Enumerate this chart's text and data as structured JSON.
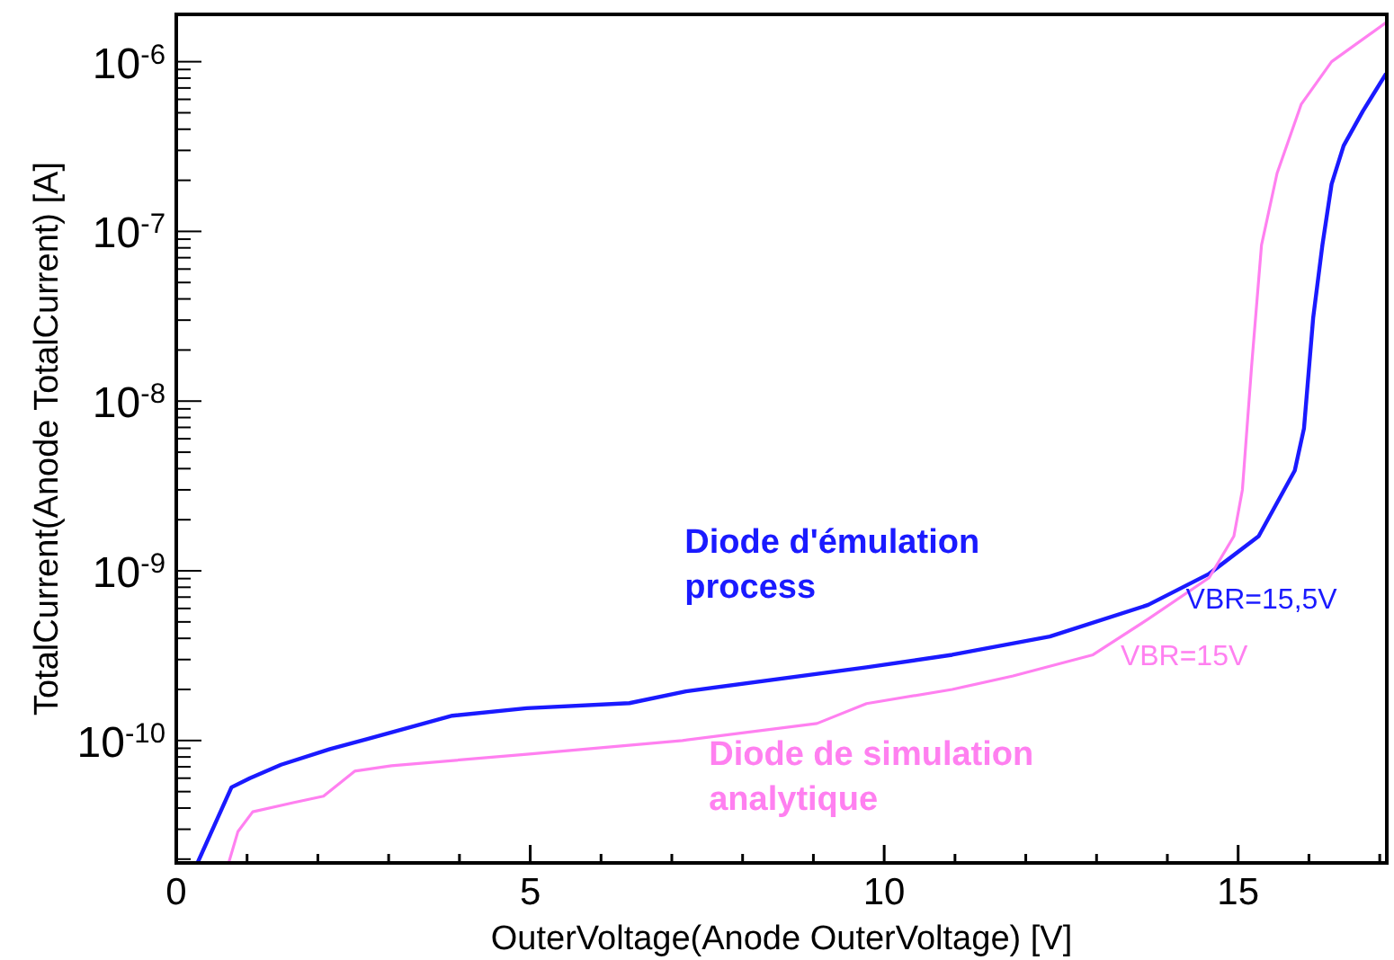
{
  "chart_data": {
    "type": "line",
    "xlabel": "OuterVoltage(Anode OuterVoltage) [V]",
    "ylabel": "TotalCurrent(Anode TotalCurrent) [A]",
    "log": "y",
    "xlim": [
      0,
      17.1
    ],
    "ylim": [
      1.9e-11,
      1.9e-06
    ],
    "xticks": [
      0,
      {
        "value": 1,
        "label": null
      },
      {
        "value": 2,
        "label": null
      },
      {
        "value": 3,
        "label": null
      },
      {
        "value": 4,
        "label": null
      },
      5,
      {
        "value": 6,
        "label": null
      },
      {
        "value": 7,
        "label": null
      },
      {
        "value": 8,
        "label": null
      },
      {
        "value": 9,
        "label": null
      },
      10,
      {
        "value": 11,
        "label": null
      },
      {
        "value": 12,
        "label": null
      },
      {
        "value": 13,
        "label": null
      },
      {
        "value": 14,
        "label": null
      },
      15,
      {
        "value": 16,
        "label": null
      },
      {
        "value": 17,
        "label": null
      }
    ],
    "yticks": [
      {
        "value": 2e-11,
        "label": null
      },
      {
        "value": 3e-11,
        "label": null
      },
      {
        "value": 4e-11,
        "label": null
      },
      {
        "value": 5e-11,
        "label": null
      },
      {
        "value": 6e-11,
        "label": null
      },
      {
        "value": 7e-11,
        "label": null
      },
      {
        "value": 8e-11,
        "label": null
      },
      {
        "value": 9e-11,
        "label": null
      },
      {
        "value": 1e-10,
        "label": "10$^{-10}$"
      },
      {
        "value": 2e-10,
        "label": null
      },
      {
        "value": 3e-10,
        "label": null
      },
      {
        "value": 4e-10,
        "label": null
      },
      {
        "value": 5e-10,
        "label": null
      },
      {
        "value": 6e-10,
        "label": null
      },
      {
        "value": 7e-10,
        "label": null
      },
      {
        "value": 8e-10,
        "label": null
      },
      {
        "value": 9e-10,
        "label": null
      },
      {
        "value": 1e-09,
        "label": "10$^{-9}$"
      },
      {
        "value": 2e-09,
        "label": null
      },
      {
        "value": 3e-09,
        "label": null
      },
      {
        "value": 4e-09,
        "label": null
      },
      {
        "value": 5e-09,
        "label": null
      },
      {
        "value": 6e-09,
        "label": null
      },
      {
        "value": 7e-09,
        "label": null
      },
      {
        "value": 8e-09,
        "label": null
      },
      {
        "value": 9e-09,
        "label": null
      },
      {
        "value": 1e-08,
        "label": "10$^{-8}$"
      },
      {
        "value": 2e-08,
        "label": null
      },
      {
        "value": 3e-08,
        "label": null
      },
      {
        "value": 4e-08,
        "label": null
      },
      {
        "value": 5e-08,
        "label": null
      },
      {
        "value": 6e-08,
        "label": null
      },
      {
        "value": 7e-08,
        "label": null
      },
      {
        "value": 8e-08,
        "label": null
      },
      {
        "value": 9e-08,
        "label": null
      },
      {
        "value": 1e-07,
        "label": "10$^{-7}$"
      },
      {
        "value": 2e-07,
        "label": null
      },
      {
        "value": 3e-07,
        "label": null
      },
      {
        "value": 4e-07,
        "label": null
      },
      {
        "value": 5e-07,
        "label": null
      },
      {
        "value": 6e-07,
        "label": null
      },
      {
        "value": 7e-07,
        "label": null
      },
      {
        "value": 8e-07,
        "label": null
      },
      {
        "value": 9e-07,
        "label": null
      },
      {
        "value": 1e-06,
        "label": "10$^{-6}$"
      }
    ],
    "grid": false,
    "series": [
      {
        "name": "Diode d'émulation process",
        "color": "#1a1aff",
        "x": [
          0.3,
          0.78,
          1.04,
          1.48,
          2.17,
          2.7,
          3.9,
          4.95,
          6.4,
          7.2,
          9.75,
          10.96,
          12.34,
          13.73,
          14.59,
          15.29,
          15.8,
          15.93,
          16.06,
          16.19,
          16.32,
          16.49,
          16.76,
          17.09
        ],
        "values": [
          1.9e-11,
          5.3e-11,
          6e-11,
          7.2e-11,
          8.9e-11,
          1.02e-10,
          1.4e-10,
          1.55e-10,
          1.66e-10,
          1.95e-10,
          2.7e-10,
          3.2e-10,
          4.1e-10,
          6.3e-10,
          9.6e-10,
          1.6e-09,
          3.9e-09,
          6.9e-09,
          3.1e-08,
          8.3e-08,
          1.9e-07,
          3.2e-07,
          5.1e-07,
          8.5e-07
        ]
      },
      {
        "name": "Diode de simulation analytique",
        "color": "#ff80f0",
        "x": [
          0.74,
          0.87,
          1.08,
          1.65,
          2.08,
          2.52,
          3.04,
          4.95,
          7.15,
          9.05,
          9.75,
          10.96,
          11.82,
          12.95,
          13.73,
          14.59,
          14.94,
          15.06,
          15.19,
          15.33,
          15.55,
          15.89,
          16.32,
          17.09
        ],
        "values": [
          1.9e-11,
          2.9e-11,
          3.8e-11,
          4.3e-11,
          4.7e-11,
          6.6e-11,
          7.1e-11,
          8.3e-11,
          1e-10,
          1.26e-10,
          1.65e-10,
          2e-10,
          2.4e-10,
          3.2e-10,
          5.2e-10,
          9.1e-10,
          1.6e-09,
          3e-09,
          1.6e-08,
          8.3e-08,
          2.2e-07,
          5.6e-07,
          1e-06,
          1.7e-06
        ]
      }
    ],
    "annotations": [
      "VBR=15,5V",
      "VBR=15V"
    ]
  }
}
